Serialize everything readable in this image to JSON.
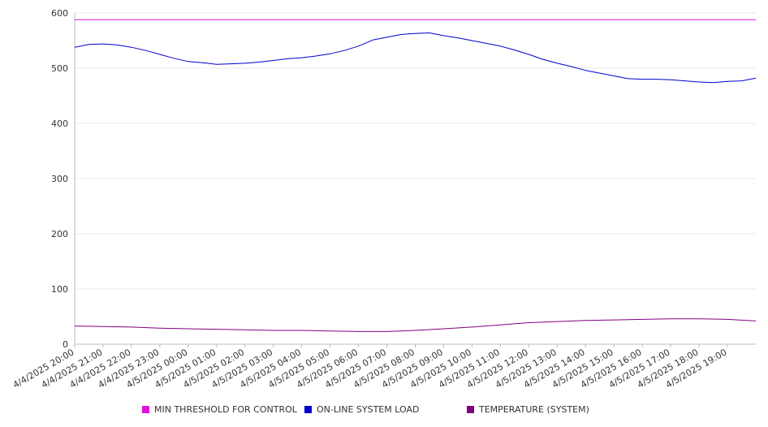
{
  "chart_data": {
    "type": "line",
    "ylim": [
      0,
      600
    ],
    "y_ticks": [
      "0",
      "100",
      "200",
      "300",
      "400",
      "500",
      "600"
    ],
    "x_ticks": [
      "4/4/2025 20:00",
      "4/4/2025 21:00",
      "4/4/2025 22:00",
      "4/4/2025 23:00",
      "4/5/2025 00:00",
      "4/5/2025 01:00",
      "4/5/2025 02:00",
      "4/5/2025 03:00",
      "4/5/2025 04:00",
      "4/5/2025 05:00",
      "4/5/2025 06:00",
      "4/5/2025 07:00",
      "4/5/2025 08:00",
      "4/5/2025 09:00",
      "4/5/2025 10:00",
      "4/5/2025 11:00",
      "4/5/2025 12:00",
      "4/5/2025 13:00",
      "4/5/2025 14:00",
      "4/5/2025 15:00",
      "4/5/2025 16:00",
      "4/5/2025 17:00",
      "4/5/2025 18:00",
      "4/5/2025 19:00"
    ],
    "x_end": "4/5/2025 20:00",
    "grid": true,
    "legend_position": "bottom",
    "series": [
      {
        "name": "MIN THRESHOLD FOR CONTROL",
        "color": "#e010e0",
        "points": [
          [
            "4/4/2025 20:00",
            588
          ],
          [
            "4/5/2025 20:00",
            588
          ]
        ]
      },
      {
        "name": "ON-LINE SYSTEM LOAD",
        "color": "#0000cc",
        "points": [
          [
            "4/4/2025 20:00",
            538
          ],
          [
            "4/4/2025 20:30",
            543
          ],
          [
            "4/4/2025 21:00",
            544
          ],
          [
            "4/4/2025 21:30",
            542
          ],
          [
            "4/4/2025 22:00",
            538
          ],
          [
            "4/4/2025 22:30",
            532
          ],
          [
            "4/4/2025 23:00",
            525
          ],
          [
            "4/4/2025 23:30",
            518
          ],
          [
            "4/5/2025 00:00",
            512
          ],
          [
            "4/5/2025 00:30",
            510
          ],
          [
            "4/5/2025 01:00",
            507
          ],
          [
            "4/5/2025 01:30",
            508
          ],
          [
            "4/5/2025 02:00",
            509
          ],
          [
            "4/5/2025 02:30",
            511
          ],
          [
            "4/5/2025 03:00",
            514
          ],
          [
            "4/5/2025 03:30",
            517
          ],
          [
            "4/5/2025 04:00",
            519
          ],
          [
            "4/5/2025 04:30",
            522
          ],
          [
            "4/5/2025 05:00",
            526
          ],
          [
            "4/5/2025 05:30",
            532
          ],
          [
            "4/5/2025 06:00",
            540
          ],
          [
            "4/5/2025 06:30",
            551
          ],
          [
            "4/5/2025 07:00",
            556
          ],
          [
            "4/5/2025 07:30",
            561
          ],
          [
            "4/5/2025 08:00",
            563
          ],
          [
            "4/5/2025 08:30",
            564
          ],
          [
            "4/5/2025 09:00",
            559
          ],
          [
            "4/5/2025 09:30",
            555
          ],
          [
            "4/5/2025 10:00",
            550
          ],
          [
            "4/5/2025 10:30",
            545
          ],
          [
            "4/5/2025 11:00",
            540
          ],
          [
            "4/5/2025 11:30",
            533
          ],
          [
            "4/5/2025 12:00",
            525
          ],
          [
            "4/5/2025 12:30",
            516
          ],
          [
            "4/5/2025 13:00",
            509
          ],
          [
            "4/5/2025 13:30",
            503
          ],
          [
            "4/5/2025 14:00",
            496
          ],
          [
            "4/5/2025 14:30",
            491
          ],
          [
            "4/5/2025 15:00",
            486
          ],
          [
            "4/5/2025 15:30",
            481
          ],
          [
            "4/5/2025 16:00",
            480
          ],
          [
            "4/5/2025 16:30",
            480
          ],
          [
            "4/5/2025 17:00",
            479
          ],
          [
            "4/5/2025 17:30",
            477
          ],
          [
            "4/5/2025 18:00",
            475
          ],
          [
            "4/5/2025 18:30",
            474
          ],
          [
            "4/5/2025 19:00",
            476
          ],
          [
            "4/5/2025 19:30",
            477
          ],
          [
            "4/5/2025 20:00",
            482
          ]
        ]
      },
      {
        "name": "TEMPERATURE (SYSTEM)",
        "color": "#800080",
        "points": [
          [
            "4/4/2025 20:00",
            33
          ],
          [
            "4/4/2025 21:00",
            32
          ],
          [
            "4/4/2025 22:00",
            31
          ],
          [
            "4/4/2025 23:00",
            29
          ],
          [
            "4/5/2025 00:00",
            28
          ],
          [
            "4/5/2025 01:00",
            27
          ],
          [
            "4/5/2025 02:00",
            26
          ],
          [
            "4/5/2025 03:00",
            25
          ],
          [
            "4/5/2025 04:00",
            25
          ],
          [
            "4/5/2025 05:00",
            24
          ],
          [
            "4/5/2025 06:00",
            23
          ],
          [
            "4/5/2025 07:00",
            23
          ],
          [
            "4/5/2025 08:00",
            25
          ],
          [
            "4/5/2025 09:00",
            28
          ],
          [
            "4/5/2025 10:00",
            31
          ],
          [
            "4/5/2025 11:00",
            35
          ],
          [
            "4/5/2025 12:00",
            39
          ],
          [
            "4/5/2025 13:00",
            41
          ],
          [
            "4/5/2025 14:00",
            43
          ],
          [
            "4/5/2025 15:00",
            44
          ],
          [
            "4/5/2025 16:00",
            45
          ],
          [
            "4/5/2025 17:00",
            46
          ],
          [
            "4/5/2025 18:00",
            46
          ],
          [
            "4/5/2025 19:00",
            45
          ],
          [
            "4/5/2025 20:00",
            42
          ]
        ]
      }
    ]
  }
}
